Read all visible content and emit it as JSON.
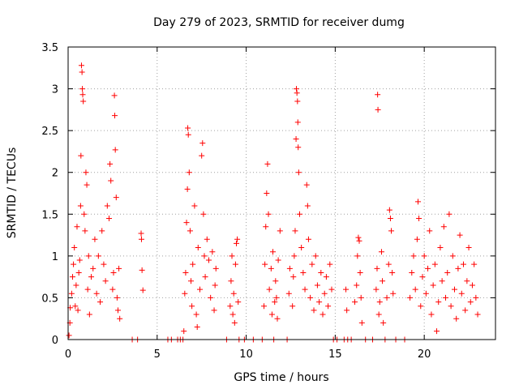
{
  "chart_data": {
    "type": "scatter",
    "title": "Day 279 of 2023, SRMTID for receiver dumg",
    "xlabel": "GPS time / hours",
    "ylabel": "SRMTID / TECUs",
    "xlim": [
      0,
      24
    ],
    "ylim": [
      0,
      3.5
    ],
    "x_ticks": [
      0,
      5,
      10,
      15,
      20
    ],
    "x_tick_labels": [
      "0",
      "5",
      "10",
      "15",
      "20"
    ],
    "y_ticks": [
      0,
      0.5,
      1,
      1.5,
      2,
      2.5,
      3,
      3.5
    ],
    "y_tick_labels": [
      "0",
      "0.5",
      "1",
      "1.5",
      "2",
      "2.5",
      "3",
      "3.5"
    ],
    "grid": true,
    "marker": "+",
    "series_color": "#ff0000",
    "series": [
      {
        "name": "SRMTID",
        "points": [
          [
            0.05,
            0.05
          ],
          [
            0.1,
            0.2
          ],
          [
            0.12,
            0.38
          ],
          [
            0.2,
            0.55
          ],
          [
            0.25,
            0.75
          ],
          [
            0.3,
            0.9
          ],
          [
            0.35,
            1.1
          ],
          [
            0.4,
            0.4
          ],
          [
            0.45,
            0.65
          ],
          [
            0.5,
            1.35
          ],
          [
            0.55,
            0.35
          ],
          [
            0.6,
            0.8
          ],
          [
            0.65,
            0.95
          ],
          [
            0.7,
            1.6
          ],
          [
            0.72,
            2.2
          ],
          [
            0.75,
            3.28
          ],
          [
            0.78,
            3.2
          ],
          [
            0.8,
            3.0
          ],
          [
            0.82,
            2.93
          ],
          [
            0.85,
            2.85
          ],
          [
            0.9,
            1.5
          ],
          [
            0.95,
            1.3
          ],
          [
            1.0,
            2.0
          ],
          [
            1.05,
            1.85
          ],
          [
            1.1,
            0.6
          ],
          [
            1.15,
            1.0
          ],
          [
            1.2,
            0.3
          ],
          [
            1.3,
            0.75
          ],
          [
            1.4,
            0.85
          ],
          [
            1.5,
            1.2
          ],
          [
            1.6,
            0.55
          ],
          [
            1.7,
            1.0
          ],
          [
            1.8,
            0.45
          ],
          [
            1.9,
            1.3
          ],
          [
            2.0,
            0.9
          ],
          [
            2.1,
            0.7
          ],
          [
            2.2,
            1.6
          ],
          [
            2.3,
            1.45
          ],
          [
            2.35,
            2.1
          ],
          [
            2.4,
            1.9
          ],
          [
            2.5,
            0.6
          ],
          [
            2.55,
            0.8
          ],
          [
            2.6,
            2.92
          ],
          [
            2.62,
            2.68
          ],
          [
            2.65,
            2.27
          ],
          [
            2.7,
            1.7
          ],
          [
            2.75,
            0.5
          ],
          [
            2.8,
            0.35
          ],
          [
            2.85,
            0.85
          ],
          [
            2.9,
            0.25
          ],
          [
            3.6,
            0.0
          ],
          [
            3.9,
            0.0
          ],
          [
            4.1,
            1.27
          ],
          [
            4.12,
            1.2
          ],
          [
            4.15,
            0.83
          ],
          [
            4.2,
            0.59
          ],
          [
            5.6,
            0.0
          ],
          [
            5.8,
            0.0
          ],
          [
            6.15,
            0.0
          ],
          [
            6.3,
            0.0
          ],
          [
            6.45,
            0.0
          ],
          [
            6.5,
            0.1
          ],
          [
            6.55,
            0.55
          ],
          [
            6.6,
            0.8
          ],
          [
            6.65,
            1.4
          ],
          [
            6.7,
            1.8
          ],
          [
            6.72,
            2.53
          ],
          [
            6.75,
            2.45
          ],
          [
            6.8,
            2.0
          ],
          [
            6.85,
            1.3
          ],
          [
            6.9,
            0.7
          ],
          [
            6.95,
            0.4
          ],
          [
            7.0,
            0.9
          ],
          [
            7.1,
            1.6
          ],
          [
            7.2,
            0.3
          ],
          [
            7.25,
            0.15
          ],
          [
            7.3,
            1.1
          ],
          [
            7.4,
            0.6
          ],
          [
            7.5,
            2.2
          ],
          [
            7.55,
            2.35
          ],
          [
            7.6,
            1.5
          ],
          [
            7.65,
            1.0
          ],
          [
            7.7,
            0.75
          ],
          [
            7.8,
            1.2
          ],
          [
            7.9,
            0.95
          ],
          [
            8.0,
            0.5
          ],
          [
            8.1,
            1.05
          ],
          [
            8.2,
            0.35
          ],
          [
            8.25,
            0.65
          ],
          [
            8.3,
            0.85
          ],
          [
            8.9,
            0.0
          ],
          [
            9.1,
            0.4
          ],
          [
            9.15,
            0.7
          ],
          [
            9.2,
            1.0
          ],
          [
            9.25,
            0.3
          ],
          [
            9.3,
            0.55
          ],
          [
            9.35,
            0.2
          ],
          [
            9.4,
            0.9
          ],
          [
            9.45,
            1.15
          ],
          [
            9.5,
            1.2
          ],
          [
            9.55,
            0.45
          ],
          [
            9.6,
            0.0
          ],
          [
            9.9,
            0.0
          ],
          [
            10.4,
            0.0
          ],
          [
            10.9,
            0.0
          ],
          [
            11.0,
            0.4
          ],
          [
            11.05,
            0.9
          ],
          [
            11.1,
            1.35
          ],
          [
            11.15,
            1.75
          ],
          [
            11.2,
            2.1
          ],
          [
            11.25,
            1.5
          ],
          [
            11.3,
            0.6
          ],
          [
            11.4,
            0.85
          ],
          [
            11.45,
            0.3
          ],
          [
            11.5,
            1.05
          ],
          [
            11.55,
            0.0
          ],
          [
            11.6,
            0.45
          ],
          [
            11.65,
            0.7
          ],
          [
            11.7,
            0.5
          ],
          [
            11.75,
            0.25
          ],
          [
            11.8,
            0.95
          ],
          [
            11.9,
            1.3
          ],
          [
            12.3,
            0.0
          ],
          [
            12.4,
            0.55
          ],
          [
            12.45,
            0.85
          ],
          [
            12.6,
            0.4
          ],
          [
            12.65,
            0.75
          ],
          [
            12.7,
            1.0
          ],
          [
            12.75,
            1.3
          ],
          [
            12.8,
            2.4
          ],
          [
            12.82,
            3.0
          ],
          [
            12.85,
            2.95
          ],
          [
            12.88,
            2.85
          ],
          [
            12.9,
            2.6
          ],
          [
            12.92,
            2.3
          ],
          [
            12.95,
            2.0
          ],
          [
            13.0,
            1.5
          ],
          [
            13.1,
            1.1
          ],
          [
            13.2,
            0.8
          ],
          [
            13.3,
            0.6
          ],
          [
            13.4,
            1.85
          ],
          [
            13.45,
            1.6
          ],
          [
            13.5,
            1.2
          ],
          [
            13.6,
            0.5
          ],
          [
            13.7,
            0.9
          ],
          [
            13.8,
            0.35
          ],
          [
            13.9,
            1.0
          ],
          [
            14.0,
            0.65
          ],
          [
            14.1,
            0.45
          ],
          [
            14.2,
            0.8
          ],
          [
            14.3,
            0.3
          ],
          [
            14.4,
            0.55
          ],
          [
            14.5,
            0.75
          ],
          [
            14.6,
            0.4
          ],
          [
            14.7,
            0.9
          ],
          [
            14.8,
            0.6
          ],
          [
            14.9,
            0.0
          ],
          [
            15.1,
            0.0
          ],
          [
            15.5,
            0.0
          ],
          [
            15.6,
            0.6
          ],
          [
            15.65,
            0.35
          ],
          [
            15.7,
            0.0
          ],
          [
            15.9,
            0.0
          ],
          [
            16.1,
            0.45
          ],
          [
            16.2,
            0.65
          ],
          [
            16.25,
            1.0
          ],
          [
            16.3,
            1.22
          ],
          [
            16.35,
            1.18
          ],
          [
            16.4,
            0.8
          ],
          [
            16.45,
            0.5
          ],
          [
            16.5,
            0.2
          ],
          [
            16.7,
            0.0
          ],
          [
            17.1,
            0.0
          ],
          [
            17.3,
            0.6
          ],
          [
            17.35,
            0.85
          ],
          [
            17.38,
            2.93
          ],
          [
            17.4,
            2.75
          ],
          [
            17.45,
            0.3
          ],
          [
            17.5,
            0.45
          ],
          [
            17.6,
            1.05
          ],
          [
            17.65,
            0.7
          ],
          [
            17.7,
            0.2
          ],
          [
            17.8,
            0.0
          ],
          [
            17.9,
            0.5
          ],
          [
            18.0,
            0.9
          ],
          [
            18.05,
            1.55
          ],
          [
            18.1,
            1.45
          ],
          [
            18.15,
            1.3
          ],
          [
            18.2,
            0.8
          ],
          [
            18.25,
            0.55
          ],
          [
            18.4,
            0.0
          ],
          [
            18.9,
            0.0
          ],
          [
            19.2,
            0.5
          ],
          [
            19.3,
            0.8
          ],
          [
            19.4,
            1.0
          ],
          [
            19.5,
            0.6
          ],
          [
            19.6,
            1.2
          ],
          [
            19.65,
            1.65
          ],
          [
            19.7,
            1.45
          ],
          [
            19.8,
            0.4
          ],
          [
            19.9,
            0.75
          ],
          [
            20.0,
            1.0
          ],
          [
            20.1,
            0.55
          ],
          [
            20.2,
            0.85
          ],
          [
            20.3,
            1.3
          ],
          [
            20.4,
            0.3
          ],
          [
            20.5,
            0.65
          ],
          [
            20.6,
            0.9
          ],
          [
            20.7,
            0.1
          ],
          [
            20.8,
            0.45
          ],
          [
            20.9,
            1.1
          ],
          [
            21.0,
            0.7
          ],
          [
            21.1,
            1.35
          ],
          [
            21.2,
            0.5
          ],
          [
            21.3,
            0.8
          ],
          [
            21.4,
            1.5
          ],
          [
            21.5,
            0.4
          ],
          [
            21.6,
            1.0
          ],
          [
            21.7,
            0.6
          ],
          [
            21.8,
            0.25
          ],
          [
            21.9,
            0.85
          ],
          [
            22.0,
            1.25
          ],
          [
            22.1,
            0.55
          ],
          [
            22.2,
            0.9
          ],
          [
            22.3,
            0.35
          ],
          [
            22.4,
            0.7
          ],
          [
            22.5,
            1.1
          ],
          [
            22.6,
            0.45
          ],
          [
            22.7,
            0.65
          ],
          [
            22.8,
            0.9
          ],
          [
            22.9,
            0.5
          ],
          [
            23.0,
            0.3
          ]
        ]
      }
    ]
  }
}
